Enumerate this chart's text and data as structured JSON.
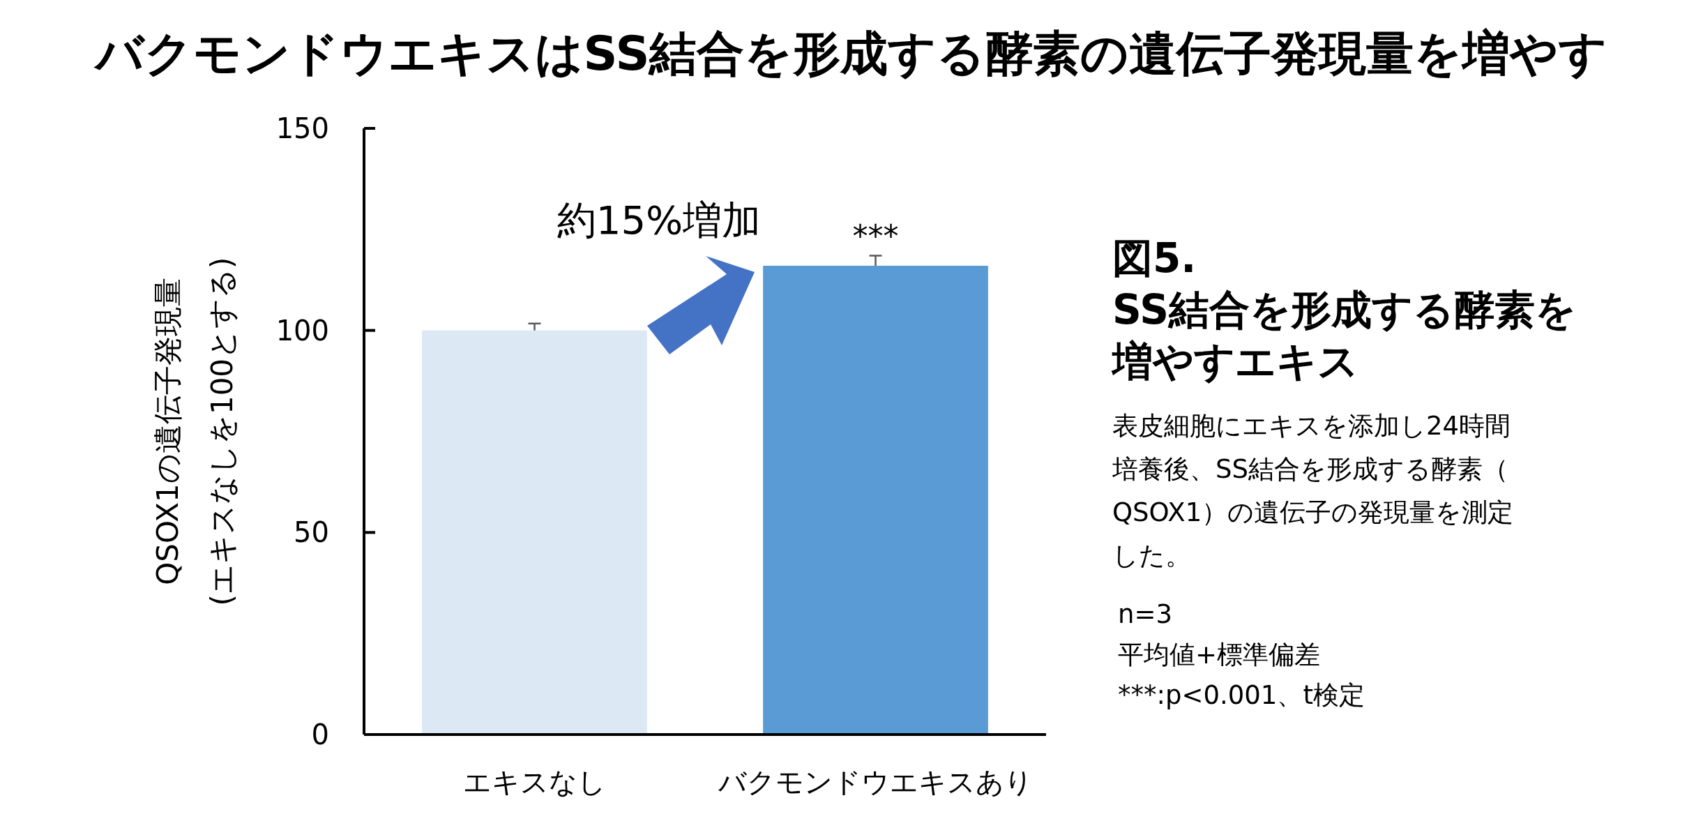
{
  "chart_data": {
    "type": "bar",
    "title": "バクモンドウエキスはSS結合を形成する酵素の遺伝子発現量を増やす",
    "ylabel": "QSOX1の遺伝子発現量\n(エキスなしを100とする)",
    "categories": [
      "エキスなし",
      "バクモンドウエキスあり"
    ],
    "values": [
      100,
      116
    ],
    "errors": [
      1.7,
      2.5
    ],
    "colors": [
      "#dde8f5",
      "#5b9bd5"
    ],
    "ylim": [
      0,
      150
    ],
    "yticks": [
      0,
      50,
      100,
      150
    ],
    "grid": false,
    "annotations": [
      "約15%増加",
      {
        "text": "***",
        "x": "バクモンドウエキスあり",
        "y": 118.5
      },
      "図5.",
      "SS結合を形成する酵素を増やすエキス",
      "表皮細胞にエキスを添加し24時間培養後、SS結合を形成する酵素（QSOX1）の遺伝子の発現量を測定した。",
      "n=3",
      "平均値+標準偏差",
      "***:p<0.001、t検定"
    ]
  }
}
